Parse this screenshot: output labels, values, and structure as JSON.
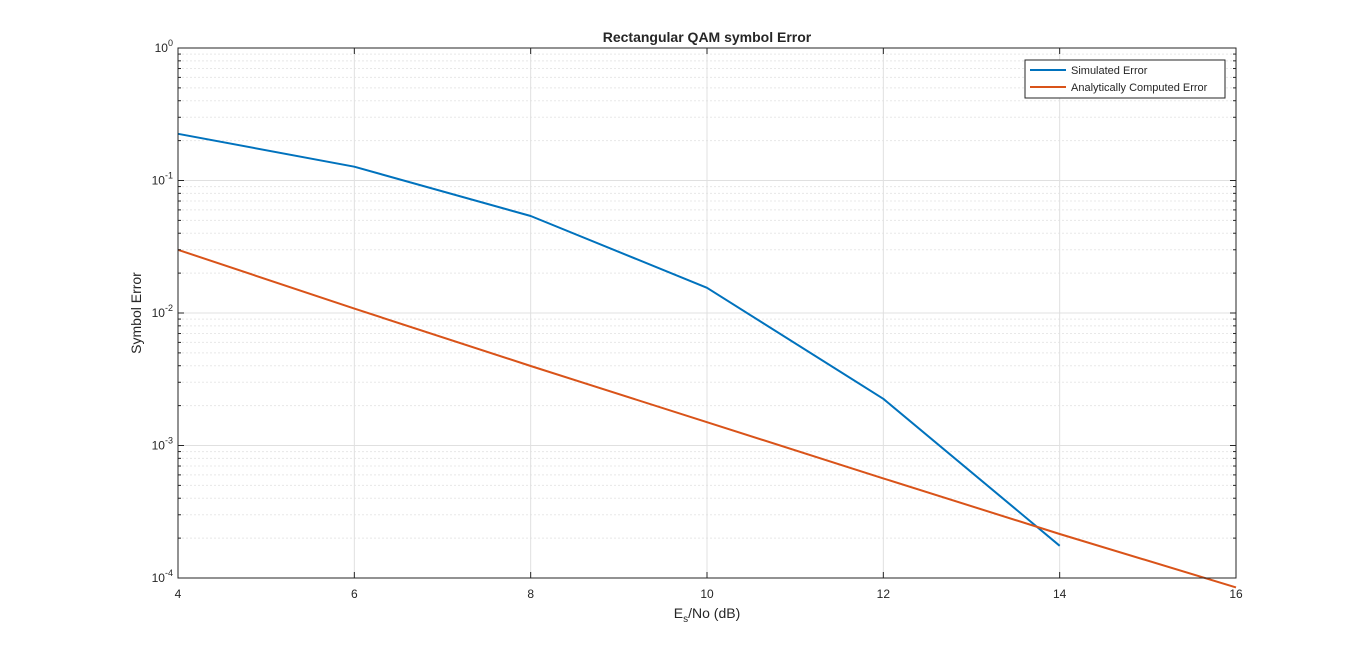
{
  "chart_data": {
    "type": "line",
    "title": "Rectangular QAM symbol Error",
    "xlabel": "E_s/No (dB)",
    "xlabel_parts": {
      "main": "E",
      "sub": "s",
      "rest": "/No (dB)"
    },
    "ylabel": "Symbol Error",
    "xlim": [
      4,
      16
    ],
    "ylim": [
      0.0001,
      1
    ],
    "yscale": "log",
    "xticks": [
      4,
      6,
      8,
      10,
      12,
      14,
      16
    ],
    "yticks": [
      {
        "value": 1,
        "base": "10",
        "exp": "0"
      },
      {
        "value": 0.1,
        "base": "10",
        "exp": "-1"
      },
      {
        "value": 0.01,
        "base": "10",
        "exp": "-2"
      },
      {
        "value": 0.001,
        "base": "10",
        "exp": "-3"
      },
      {
        "value": 0.0001,
        "base": "10",
        "exp": "-4"
      }
    ],
    "grid": true,
    "minor_grid": true,
    "legend_position": "top-right",
    "series": [
      {
        "name": "Simulated Error",
        "color": "#0072bd",
        "x": [
          4,
          6,
          8,
          10,
          12,
          14
        ],
        "y": [
          0.225,
          0.127,
          0.054,
          0.0155,
          0.00225,
          0.000175
        ]
      },
      {
        "name": "Analytically Computed Error",
        "color": "#d95319",
        "x": [
          4,
          6,
          8,
          10,
          12,
          14,
          16
        ],
        "y": [
          0.03,
          0.0108,
          0.00398,
          0.0015,
          0.000565,
          0.000215,
          8.5e-05
        ]
      }
    ]
  }
}
